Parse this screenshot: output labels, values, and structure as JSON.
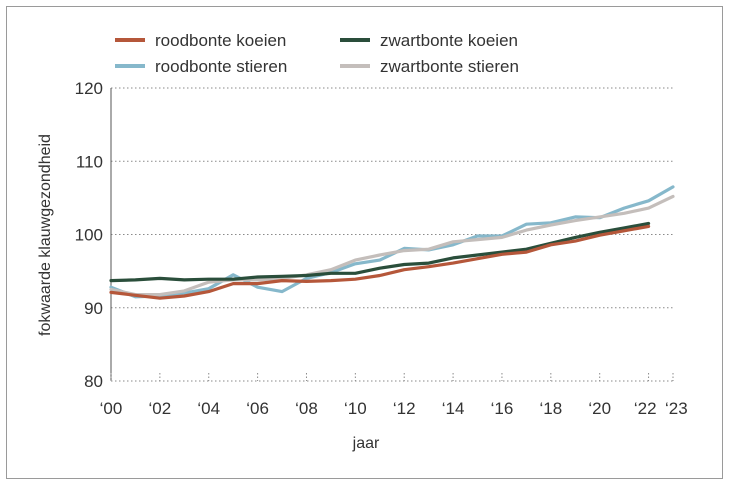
{
  "chart_data": {
    "type": "line",
    "title": "",
    "xlabel": "jaar",
    "ylabel": "fokwaarde klauwgezondheid",
    "ylim": [
      80,
      120
    ],
    "yticks": [
      80,
      90,
      100,
      110,
      120
    ],
    "xlim": [
      2000,
      2023
    ],
    "xticks": [
      {
        "value": 2000,
        "label": "‘00"
      },
      {
        "value": 2002,
        "label": "‘02"
      },
      {
        "value": 2004,
        "label": "‘04"
      },
      {
        "value": 2006,
        "label": "‘06"
      },
      {
        "value": 2008,
        "label": "‘08"
      },
      {
        "value": 2010,
        "label": "‘10"
      },
      {
        "value": 2012,
        "label": "‘12"
      },
      {
        "value": 2014,
        "label": "‘14"
      },
      {
        "value": 2016,
        "label": "‘16"
      },
      {
        "value": 2018,
        "label": "‘18"
      },
      {
        "value": 2020,
        "label": "‘20"
      },
      {
        "value": 2022,
        "label": "‘22"
      },
      {
        "value": 2023,
        "label": "‘23"
      }
    ],
    "grid": "horizontal dotted",
    "legend_position": "top",
    "series": [
      {
        "name": "roodbonte stieren",
        "color": "#86b8cb",
        "points": [
          [
            2000,
            92.8
          ],
          [
            2001,
            91.5
          ],
          [
            2002,
            91.6
          ],
          [
            2003,
            92.0
          ],
          [
            2004,
            92.6
          ],
          [
            2005,
            94.5
          ],
          [
            2006,
            92.8
          ],
          [
            2007,
            92.2
          ],
          [
            2008,
            94.0
          ],
          [
            2009,
            94.8
          ],
          [
            2010,
            96.0
          ],
          [
            2011,
            96.5
          ],
          [
            2012,
            98.1
          ],
          [
            2013,
            97.9
          ],
          [
            2014,
            98.6
          ],
          [
            2015,
            99.8
          ],
          [
            2016,
            99.8
          ],
          [
            2017,
            101.4
          ],
          [
            2018,
            101.6
          ],
          [
            2019,
            102.4
          ],
          [
            2020,
            102.3
          ],
          [
            2021,
            103.6
          ],
          [
            2022,
            104.6
          ],
          [
            2023,
            106.5
          ]
        ]
      },
      {
        "name": "zwartbonte stieren",
        "color": "#c4bebb",
        "points": [
          [
            2000,
            92.5
          ],
          [
            2001,
            91.8
          ],
          [
            2002,
            91.8
          ],
          [
            2003,
            92.3
          ],
          [
            2004,
            93.5
          ],
          [
            2005,
            93.8
          ],
          [
            2006,
            93.8
          ],
          [
            2007,
            94.0
          ],
          [
            2008,
            94.5
          ],
          [
            2009,
            95.2
          ],
          [
            2010,
            96.5
          ],
          [
            2011,
            97.2
          ],
          [
            2012,
            97.8
          ],
          [
            2013,
            98.0
          ],
          [
            2014,
            99.0
          ],
          [
            2015,
            99.3
          ],
          [
            2016,
            99.6
          ],
          [
            2017,
            100.6
          ],
          [
            2018,
            101.3
          ],
          [
            2019,
            101.9
          ],
          [
            2020,
            102.4
          ],
          [
            2021,
            102.9
          ],
          [
            2022,
            103.6
          ],
          [
            2023,
            105.2
          ]
        ]
      },
      {
        "name": "zwartbonte koeien",
        "color": "#2a4e3b",
        "points": [
          [
            2000,
            93.7
          ],
          [
            2001,
            93.8
          ],
          [
            2002,
            94.0
          ],
          [
            2003,
            93.8
          ],
          [
            2004,
            93.9
          ],
          [
            2005,
            93.9
          ],
          [
            2006,
            94.2
          ],
          [
            2007,
            94.3
          ],
          [
            2008,
            94.4
          ],
          [
            2009,
            94.7
          ],
          [
            2010,
            94.7
          ],
          [
            2011,
            95.4
          ],
          [
            2012,
            95.9
          ],
          [
            2013,
            96.1
          ],
          [
            2014,
            96.8
          ],
          [
            2015,
            97.2
          ],
          [
            2016,
            97.6
          ],
          [
            2017,
            98.0
          ],
          [
            2018,
            98.8
          ],
          [
            2019,
            99.6
          ],
          [
            2020,
            100.3
          ],
          [
            2021,
            100.9
          ],
          [
            2022,
            101.5
          ]
        ]
      },
      {
        "name": "roodbonte koeien",
        "color": "#b5573a",
        "points": [
          [
            2000,
            92.1
          ],
          [
            2001,
            91.7
          ],
          [
            2002,
            91.3
          ],
          [
            2003,
            91.6
          ],
          [
            2004,
            92.2
          ],
          [
            2005,
            93.3
          ],
          [
            2006,
            93.3
          ],
          [
            2007,
            93.7
          ],
          [
            2008,
            93.6
          ],
          [
            2009,
            93.7
          ],
          [
            2010,
            93.9
          ],
          [
            2011,
            94.4
          ],
          [
            2012,
            95.2
          ],
          [
            2013,
            95.6
          ],
          [
            2014,
            96.1
          ],
          [
            2015,
            96.7
          ],
          [
            2016,
            97.3
          ],
          [
            2017,
            97.6
          ],
          [
            2018,
            98.6
          ],
          [
            2019,
            99.1
          ],
          [
            2020,
            99.9
          ],
          [
            2021,
            100.5
          ],
          [
            2022,
            101.1
          ]
        ]
      }
    ],
    "legend": [
      {
        "name": "roodbonte koeien",
        "color": "#b5573a"
      },
      {
        "name": "zwartbonte koeien",
        "color": "#2a4e3b"
      },
      {
        "name": "roodbonte stieren",
        "color": "#86b8cb"
      },
      {
        "name": "zwartbonte stieren",
        "color": "#c4bebb"
      }
    ]
  }
}
